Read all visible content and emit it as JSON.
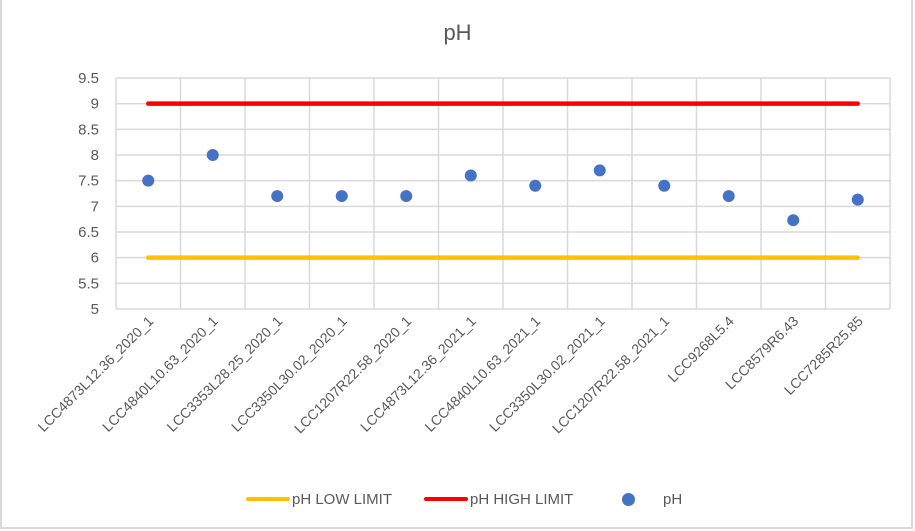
{
  "chart_data": {
    "type": "line",
    "title": "pH",
    "xlabel": "",
    "ylabel": "",
    "ylim": [
      5,
      9.5
    ],
    "y_ticks": [
      "5",
      "5.5",
      "6",
      "6.5",
      "7",
      "7.5",
      "8",
      "8.5",
      "9",
      "9.5"
    ],
    "grid": true,
    "legend_position": "bottom",
    "categories": [
      "LCC4873L12.36_2020_1",
      "LCC4840L10.63_2020_1",
      "LCC3353L28.25_2020_1",
      "LCC3350L30.02_2020_1",
      "LCC1207R22.58_2020_1",
      "LCC4873L12.36_2021_1",
      "LCC4840L10.63_2021_1",
      "LCC3350L30.02_2021_1",
      "LCC1207R22.58_2021_1",
      "LCC9268L5.4",
      "LCC8579R6.43",
      "LCC7285R25.85"
    ],
    "series": [
      {
        "name": "pH LOW LIMIT",
        "kind": "line",
        "color": "#ffc000",
        "values": [
          6,
          6,
          6,
          6,
          6,
          6,
          6,
          6,
          6,
          6,
          6,
          6
        ]
      },
      {
        "name": "pH HIGH LIMIT",
        "kind": "line",
        "color": "#ff0000",
        "values": [
          9,
          9,
          9,
          9,
          9,
          9,
          9,
          9,
          9,
          9,
          9,
          9
        ]
      },
      {
        "name": "pH",
        "kind": "scatter",
        "color": "#4472c4",
        "values": [
          7.5,
          8.0,
          7.2,
          7.2,
          7.2,
          7.6,
          7.4,
          7.7,
          7.4,
          7.2,
          6.73,
          7.13
        ]
      }
    ]
  },
  "legend": {
    "low_label": "pH LOW LIMIT",
    "high_label": "pH HIGH LIMIT",
    "ph_label": "pH"
  }
}
